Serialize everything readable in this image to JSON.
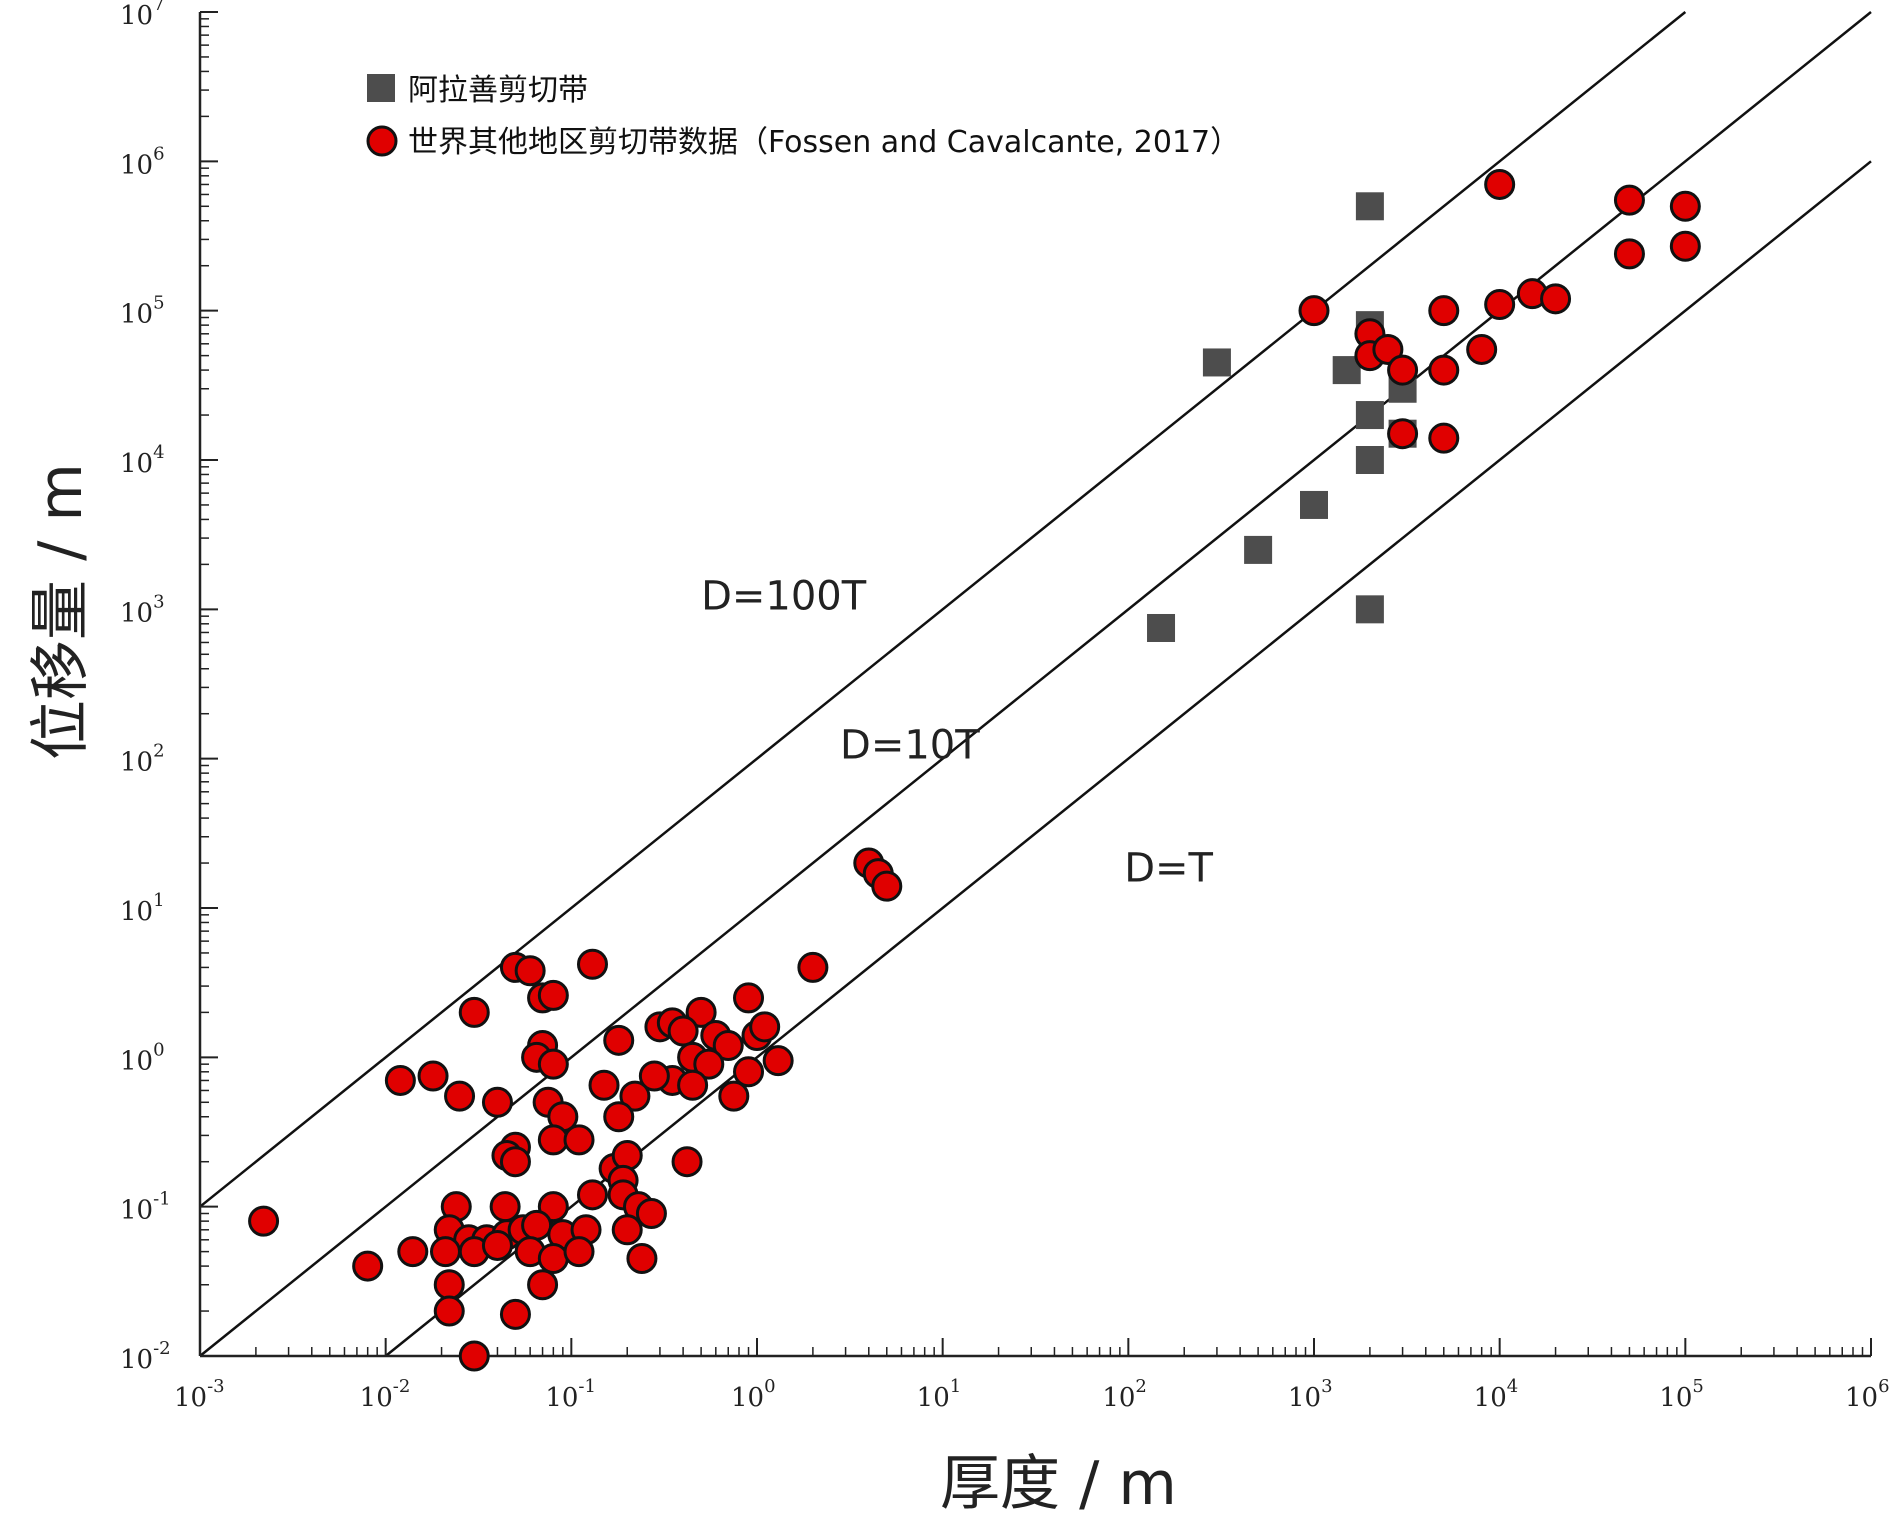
{
  "chart_data": {
    "type": "scatter",
    "xlabel": "厚度 / m",
    "ylabel": "位移量 / m",
    "x_scale": "log",
    "y_scale": "log",
    "xlim": [
      0.001,
      1000000
    ],
    "ylim": [
      0.01,
      10000000
    ],
    "x_ticks": [
      {
        "value": 0.001,
        "label": "10",
        "exp": "-3"
      },
      {
        "value": 0.01,
        "label": "10",
        "exp": "-2"
      },
      {
        "value": 0.1,
        "label": "10",
        "exp": "-1"
      },
      {
        "value": 1,
        "label": "10",
        "exp": "0"
      },
      {
        "value": 10,
        "label": "10",
        "exp": "1"
      },
      {
        "value": 100,
        "label": "10",
        "exp": "2"
      },
      {
        "value": 1000,
        "label": "10",
        "exp": "3"
      },
      {
        "value": 10000,
        "label": "10",
        "exp": "4"
      },
      {
        "value": 100000,
        "label": "10",
        "exp": "5"
      },
      {
        "value": 1000000,
        "label": "10",
        "exp": "6"
      }
    ],
    "y_ticks": [
      {
        "value": 0.01,
        "label": "10",
        "exp": "-2"
      },
      {
        "value": 0.1,
        "label": "10",
        "exp": "-1"
      },
      {
        "value": 1,
        "label": "10",
        "exp": "0"
      },
      {
        "value": 10,
        "label": "10",
        "exp": "1"
      },
      {
        "value": 100,
        "label": "10",
        "exp": "2"
      },
      {
        "value": 1000,
        "label": "10",
        "exp": "3"
      },
      {
        "value": 10000,
        "label": "10",
        "exp": "4"
      },
      {
        "value": 100000,
        "label": "10",
        "exp": "5"
      },
      {
        "value": 1000000,
        "label": "10",
        "exp": "6"
      },
      {
        "value": 10000000,
        "label": "10",
        "exp": "7"
      }
    ],
    "reference_lines": [
      {
        "label": "D=100T",
        "factor": 100,
        "label_at": [
          0.5,
          1000
        ]
      },
      {
        "label": "D=10T",
        "factor": 10,
        "label_at": [
          2.8,
          100
        ]
      },
      {
        "label": "D=T",
        "factor": 1,
        "label_at": [
          95,
          15
        ]
      }
    ],
    "legend_position": "top-left",
    "series": [
      {
        "name": "阿拉善剪切带",
        "marker": "square",
        "color": "#4d4d4d",
        "points": [
          [
            2000,
            500000
          ],
          [
            300,
            45000
          ],
          [
            1500,
            40000
          ],
          [
            2000,
            80000
          ],
          [
            2000,
            20000
          ],
          [
            3000,
            30000
          ],
          [
            3000,
            15000
          ],
          [
            2000,
            10000
          ],
          [
            1000,
            5000
          ],
          [
            500,
            2500
          ],
          [
            2000,
            1000
          ],
          [
            150,
            750
          ]
        ]
      },
      {
        "name": "世界其他地区剪切带数据（Fossen and Cavalcante, 2017）",
        "marker": "circle",
        "color": "#e00000",
        "edge_color": "#111111",
        "points": [
          [
            10000,
            700000
          ],
          [
            50000,
            550000
          ],
          [
            100000,
            500000
          ],
          [
            50000,
            240000
          ],
          [
            100000,
            270000
          ],
          [
            1000,
            100000
          ],
          [
            5000,
            100000
          ],
          [
            10000,
            110000
          ],
          [
            15000,
            130000
          ],
          [
            20000,
            120000
          ],
          [
            2000,
            70000
          ],
          [
            2000,
            50000
          ],
          [
            2500,
            55000
          ],
          [
            3000,
            40000
          ],
          [
            5000,
            40000
          ],
          [
            8000,
            55000
          ],
          [
            3000,
            15000
          ],
          [
            5000,
            14000
          ],
          [
            4,
            20
          ],
          [
            4.5,
            17
          ],
          [
            5,
            14
          ],
          [
            2,
            4
          ],
          [
            0.05,
            4
          ],
          [
            0.06,
            3.8
          ],
          [
            0.13,
            4.2
          ],
          [
            0.07,
            2.5
          ],
          [
            0.08,
            2.6
          ],
          [
            0.03,
            2
          ],
          [
            0.9,
            2.5
          ],
          [
            0.5,
            2
          ],
          [
            0.3,
            1.6
          ],
          [
            0.35,
            1.7
          ],
          [
            0.4,
            1.5
          ],
          [
            0.6,
            1.4
          ],
          [
            0.7,
            1.2
          ],
          [
            1,
            1.4
          ],
          [
            1.1,
            1.6
          ],
          [
            0.18,
            1.3
          ],
          [
            0.07,
            1.2
          ],
          [
            0.065,
            1
          ],
          [
            0.08,
            0.9
          ],
          [
            0.45,
            1
          ],
          [
            0.55,
            0.9
          ],
          [
            0.9,
            0.8
          ],
          [
            1.3,
            0.95
          ],
          [
            0.35,
            0.7
          ],
          [
            0.45,
            0.65
          ],
          [
            0.28,
            0.75
          ],
          [
            0.75,
            0.55
          ],
          [
            0.15,
            0.65
          ],
          [
            0.22,
            0.55
          ],
          [
            0.18,
            0.4
          ],
          [
            0.012,
            0.7
          ],
          [
            0.018,
            0.75
          ],
          [
            0.025,
            0.55
          ],
          [
            0.04,
            0.5
          ],
          [
            0.075,
            0.5
          ],
          [
            0.09,
            0.4
          ],
          [
            0.08,
            0.28
          ],
          [
            0.11,
            0.28
          ],
          [
            0.05,
            0.25
          ],
          [
            0.045,
            0.22
          ],
          [
            0.05,
            0.2
          ],
          [
            0.17,
            0.18
          ],
          [
            0.2,
            0.22
          ],
          [
            0.19,
            0.15
          ],
          [
            0.42,
            0.2
          ],
          [
            0.13,
            0.12
          ],
          [
            0.19,
            0.12
          ],
          [
            0.23,
            0.1
          ],
          [
            0.27,
            0.09
          ],
          [
            0.024,
            0.1
          ],
          [
            0.044,
            0.1
          ],
          [
            0.08,
            0.1
          ],
          [
            0.0022,
            0.08
          ],
          [
            0.022,
            0.07
          ],
          [
            0.028,
            0.06
          ],
          [
            0.035,
            0.06
          ],
          [
            0.045,
            0.065
          ],
          [
            0.055,
            0.07
          ],
          [
            0.065,
            0.075
          ],
          [
            0.09,
            0.065
          ],
          [
            0.12,
            0.07
          ],
          [
            0.2,
            0.07
          ],
          [
            0.014,
            0.05
          ],
          [
            0.021,
            0.05
          ],
          [
            0.03,
            0.05
          ],
          [
            0.04,
            0.055
          ],
          [
            0.06,
            0.05
          ],
          [
            0.08,
            0.045
          ],
          [
            0.11,
            0.05
          ],
          [
            0.24,
            0.045
          ],
          [
            0.008,
            0.04
          ],
          [
            0.022,
            0.03
          ],
          [
            0.07,
            0.03
          ],
          [
            0.022,
            0.02
          ],
          [
            0.05,
            0.019
          ],
          [
            0.03,
            0.01
          ]
        ]
      }
    ]
  }
}
